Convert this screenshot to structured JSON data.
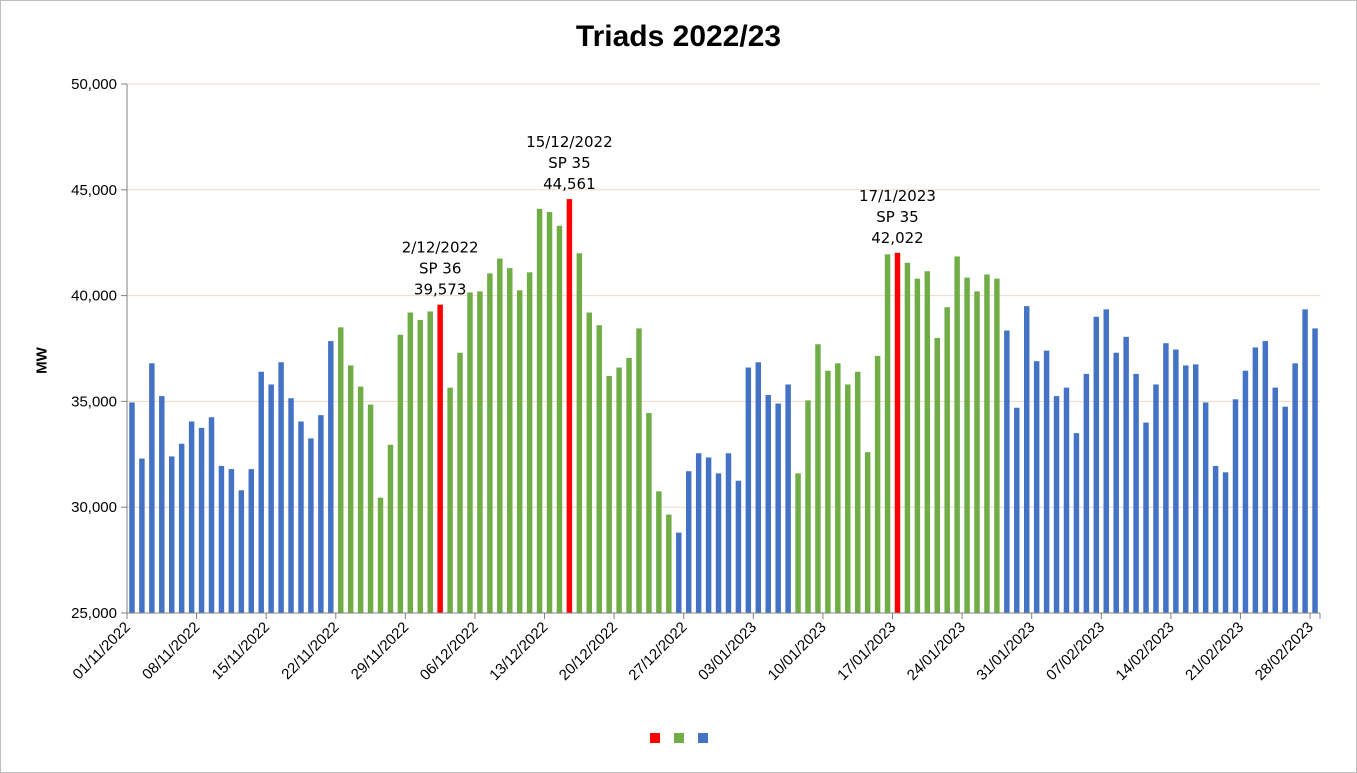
{
  "chart_data": {
    "type": "bar",
    "title": "Triads 2022/23",
    "xlabel": "",
    "ylabel": "MW",
    "ylim": [
      25000,
      50000
    ],
    "y_ticks": [
      "25,000",
      "30,000",
      "35,000",
      "40,000",
      "45,000",
      "50,000"
    ],
    "y_tick_values": [
      25000,
      30000,
      35000,
      40000,
      45000,
      50000
    ],
    "x_tick_labels": [
      "01/11/2022",
      "08/11/2022",
      "15/11/2022",
      "22/11/2022",
      "29/11/2022",
      "06/12/2022",
      "13/12/2022",
      "20/12/2022",
      "27/12/2022",
      "03/01/2023",
      "10/01/2023",
      "17/01/2023",
      "24/01/2023",
      "31/01/2023",
      "07/02/2023",
      "14/02/2023",
      "21/02/2023",
      "28/02/2023"
    ],
    "grid": "horizontal",
    "legend": "bottom-center",
    "colors": {
      "triad": "#ff0000",
      "triad_season": "#70ad47",
      "other": "#4472c4"
    },
    "series": [
      {
        "color": "#ff0000",
        "dates": [
          "2022-12-02",
          "2022-12-15",
          "2023-01-17"
        ]
      },
      {
        "color": "#70ad47"
      },
      {
        "color": "#4472c4"
      }
    ],
    "days": [
      {
        "date": "2022-11-01",
        "value": 34950,
        "group": "other"
      },
      {
        "date": "2022-11-02",
        "value": 32300,
        "group": "other"
      },
      {
        "date": "2022-11-03",
        "value": 36800,
        "group": "other"
      },
      {
        "date": "2022-11-04",
        "value": 35250,
        "group": "other"
      },
      {
        "date": "2022-11-05",
        "value": 32400,
        "group": "other"
      },
      {
        "date": "2022-11-06",
        "value": 33000,
        "group": "other"
      },
      {
        "date": "2022-11-07",
        "value": 34050,
        "group": "other"
      },
      {
        "date": "2022-11-08",
        "value": 33750,
        "group": "other"
      },
      {
        "date": "2022-11-09",
        "value": 34250,
        "group": "other"
      },
      {
        "date": "2022-11-10",
        "value": 31950,
        "group": "other"
      },
      {
        "date": "2022-11-11",
        "value": 31800,
        "group": "other"
      },
      {
        "date": "2022-11-12",
        "value": 30800,
        "group": "other"
      },
      {
        "date": "2022-11-13",
        "value": 31800,
        "group": "other"
      },
      {
        "date": "2022-11-14",
        "value": 36400,
        "group": "other"
      },
      {
        "date": "2022-11-15",
        "value": 35800,
        "group": "other"
      },
      {
        "date": "2022-11-16",
        "value": 36850,
        "group": "other"
      },
      {
        "date": "2022-11-17",
        "value": 35150,
        "group": "other"
      },
      {
        "date": "2022-11-18",
        "value": 34050,
        "group": "other"
      },
      {
        "date": "2022-11-19",
        "value": 33250,
        "group": "other"
      },
      {
        "date": "2022-11-20",
        "value": 34350,
        "group": "other"
      },
      {
        "date": "2022-11-21",
        "value": 37850,
        "group": "other"
      },
      {
        "date": "2022-11-22",
        "value": 38500,
        "group": "triad_season"
      },
      {
        "date": "2022-11-23",
        "value": 36700,
        "group": "triad_season"
      },
      {
        "date": "2022-11-24",
        "value": 35700,
        "group": "triad_season"
      },
      {
        "date": "2022-11-25",
        "value": 34850,
        "group": "triad_season"
      },
      {
        "date": "2022-11-26",
        "value": 30450,
        "group": "triad_season"
      },
      {
        "date": "2022-11-27",
        "value": 32950,
        "group": "triad_season"
      },
      {
        "date": "2022-11-28",
        "value": 38150,
        "group": "triad_season"
      },
      {
        "date": "2022-11-29",
        "value": 39200,
        "group": "triad_season"
      },
      {
        "date": "2022-11-30",
        "value": 38850,
        "group": "triad_season"
      },
      {
        "date": "2022-12-01",
        "value": 39250,
        "group": "triad_season"
      },
      {
        "date": "2022-12-02",
        "value": 39573,
        "group": "triad"
      },
      {
        "date": "2022-12-03",
        "value": 35650,
        "group": "triad_season"
      },
      {
        "date": "2022-12-04",
        "value": 37300,
        "group": "triad_season"
      },
      {
        "date": "2022-12-05",
        "value": 40150,
        "group": "triad_season"
      },
      {
        "date": "2022-12-06",
        "value": 40200,
        "group": "triad_season"
      },
      {
        "date": "2022-12-07",
        "value": 41050,
        "group": "triad_season"
      },
      {
        "date": "2022-12-08",
        "value": 41750,
        "group": "triad_season"
      },
      {
        "date": "2022-12-09",
        "value": 41300,
        "group": "triad_season"
      },
      {
        "date": "2022-12-10",
        "value": 40250,
        "group": "triad_season"
      },
      {
        "date": "2022-12-11",
        "value": 41100,
        "group": "triad_season"
      },
      {
        "date": "2022-12-12",
        "value": 44100,
        "group": "triad_season"
      },
      {
        "date": "2022-12-13",
        "value": 43950,
        "group": "triad_season"
      },
      {
        "date": "2022-12-14",
        "value": 43300,
        "group": "triad_season"
      },
      {
        "date": "2022-12-15",
        "value": 44561,
        "group": "triad"
      },
      {
        "date": "2022-12-16",
        "value": 42000,
        "group": "triad_season"
      },
      {
        "date": "2022-12-17",
        "value": 39200,
        "group": "triad_season"
      },
      {
        "date": "2022-12-18",
        "value": 38600,
        "group": "triad_season"
      },
      {
        "date": "2022-12-19",
        "value": 36200,
        "group": "triad_season"
      },
      {
        "date": "2022-12-20",
        "value": 36600,
        "group": "triad_season"
      },
      {
        "date": "2022-12-21",
        "value": 37050,
        "group": "triad_season"
      },
      {
        "date": "2022-12-22",
        "value": 38450,
        "group": "triad_season"
      },
      {
        "date": "2022-12-23",
        "value": 34450,
        "group": "triad_season"
      },
      {
        "date": "2022-12-24",
        "value": 30750,
        "group": "triad_season"
      },
      {
        "date": "2022-12-25",
        "value": 29650,
        "group": "triad_season"
      },
      {
        "date": "2022-12-26",
        "value": 28800,
        "group": "other"
      },
      {
        "date": "2022-12-27",
        "value": 31700,
        "group": "other"
      },
      {
        "date": "2022-12-28",
        "value": 32550,
        "group": "other"
      },
      {
        "date": "2022-12-29",
        "value": 32350,
        "group": "other"
      },
      {
        "date": "2022-12-30",
        "value": 31600,
        "group": "other"
      },
      {
        "date": "2022-12-31",
        "value": 32550,
        "group": "other"
      },
      {
        "date": "2023-01-01",
        "value": 31250,
        "group": "other"
      },
      {
        "date": "2023-01-02",
        "value": 36600,
        "group": "other"
      },
      {
        "date": "2023-01-03",
        "value": 36850,
        "group": "other"
      },
      {
        "date": "2023-01-04",
        "value": 35300,
        "group": "other"
      },
      {
        "date": "2023-01-05",
        "value": 34900,
        "group": "other"
      },
      {
        "date": "2023-01-06",
        "value": 35800,
        "group": "other"
      },
      {
        "date": "2023-01-07",
        "value": 31600,
        "group": "triad_season"
      },
      {
        "date": "2023-01-08",
        "value": 35050,
        "group": "triad_season"
      },
      {
        "date": "2023-01-09",
        "value": 37700,
        "group": "triad_season"
      },
      {
        "date": "2023-01-10",
        "value": 36450,
        "group": "triad_season"
      },
      {
        "date": "2023-01-11",
        "value": 36800,
        "group": "triad_season"
      },
      {
        "date": "2023-01-12",
        "value": 35800,
        "group": "triad_season"
      },
      {
        "date": "2023-01-13",
        "value": 36400,
        "group": "triad_season"
      },
      {
        "date": "2023-01-14",
        "value": 32600,
        "group": "triad_season"
      },
      {
        "date": "2023-01-15",
        "value": 37150,
        "group": "triad_season"
      },
      {
        "date": "2023-01-16",
        "value": 41950,
        "group": "triad_season"
      },
      {
        "date": "2023-01-17",
        "value": 42022,
        "group": "triad"
      },
      {
        "date": "2023-01-18",
        "value": 41550,
        "group": "triad_season"
      },
      {
        "date": "2023-01-19",
        "value": 40800,
        "group": "triad_season"
      },
      {
        "date": "2023-01-20",
        "value": 41150,
        "group": "triad_season"
      },
      {
        "date": "2023-01-21",
        "value": 38000,
        "group": "triad_season"
      },
      {
        "date": "2023-01-22",
        "value": 39450,
        "group": "triad_season"
      },
      {
        "date": "2023-01-23",
        "value": 41850,
        "group": "triad_season"
      },
      {
        "date": "2023-01-24",
        "value": 40850,
        "group": "triad_season"
      },
      {
        "date": "2023-01-25",
        "value": 40200,
        "group": "triad_season"
      },
      {
        "date": "2023-01-26",
        "value": 41000,
        "group": "triad_season"
      },
      {
        "date": "2023-01-27",
        "value": 40800,
        "group": "triad_season"
      },
      {
        "date": "2023-01-28",
        "value": 38350,
        "group": "other"
      },
      {
        "date": "2023-01-29",
        "value": 34700,
        "group": "other"
      },
      {
        "date": "2023-01-30",
        "value": 39500,
        "group": "other"
      },
      {
        "date": "2023-01-31",
        "value": 36900,
        "group": "other"
      },
      {
        "date": "2023-02-01",
        "value": 37400,
        "group": "other"
      },
      {
        "date": "2023-02-02",
        "value": 35250,
        "group": "other"
      },
      {
        "date": "2023-02-03",
        "value": 35650,
        "group": "other"
      },
      {
        "date": "2023-02-04",
        "value": 33500,
        "group": "other"
      },
      {
        "date": "2023-02-05",
        "value": 36300,
        "group": "other"
      },
      {
        "date": "2023-02-06",
        "value": 39000,
        "group": "other"
      },
      {
        "date": "2023-02-07",
        "value": 39350,
        "group": "other"
      },
      {
        "date": "2023-02-08",
        "value": 37300,
        "group": "other"
      },
      {
        "date": "2023-02-09",
        "value": 38050,
        "group": "other"
      },
      {
        "date": "2023-02-10",
        "value": 36300,
        "group": "other"
      },
      {
        "date": "2023-02-11",
        "value": 34000,
        "group": "other"
      },
      {
        "date": "2023-02-12",
        "value": 35800,
        "group": "other"
      },
      {
        "date": "2023-02-13",
        "value": 37750,
        "group": "other"
      },
      {
        "date": "2023-02-14",
        "value": 37450,
        "group": "other"
      },
      {
        "date": "2023-02-15",
        "value": 36700,
        "group": "other"
      },
      {
        "date": "2023-02-16",
        "value": 36750,
        "group": "other"
      },
      {
        "date": "2023-02-17",
        "value": 34950,
        "group": "other"
      },
      {
        "date": "2023-02-18",
        "value": 31950,
        "group": "other"
      },
      {
        "date": "2023-02-19",
        "value": 31650,
        "group": "other"
      },
      {
        "date": "2023-02-20",
        "value": 35100,
        "group": "other"
      },
      {
        "date": "2023-02-21",
        "value": 36450,
        "group": "other"
      },
      {
        "date": "2023-02-22",
        "value": 37550,
        "group": "other"
      },
      {
        "date": "2023-02-23",
        "value": 37850,
        "group": "other"
      },
      {
        "date": "2023-02-24",
        "value": 35650,
        "group": "other"
      },
      {
        "date": "2023-02-25",
        "value": 34750,
        "group": "other"
      },
      {
        "date": "2023-02-26",
        "value": 36800,
        "group": "other"
      },
      {
        "date": "2023-02-27",
        "value": 39350,
        "group": "other"
      },
      {
        "date": "2023-02-28",
        "value": 38450,
        "group": "other"
      }
    ],
    "annotations": [
      {
        "date": "2022-12-02",
        "lines": [
          "2/12/2022",
          "SP 36",
          "39,573"
        ]
      },
      {
        "date": "2022-12-15",
        "lines": [
          "15/12/2022",
          "SP 35",
          "44,561"
        ]
      },
      {
        "date": "2023-01-17",
        "lines": [
          "17/1/2023",
          "SP 35",
          "42,022"
        ]
      }
    ]
  }
}
